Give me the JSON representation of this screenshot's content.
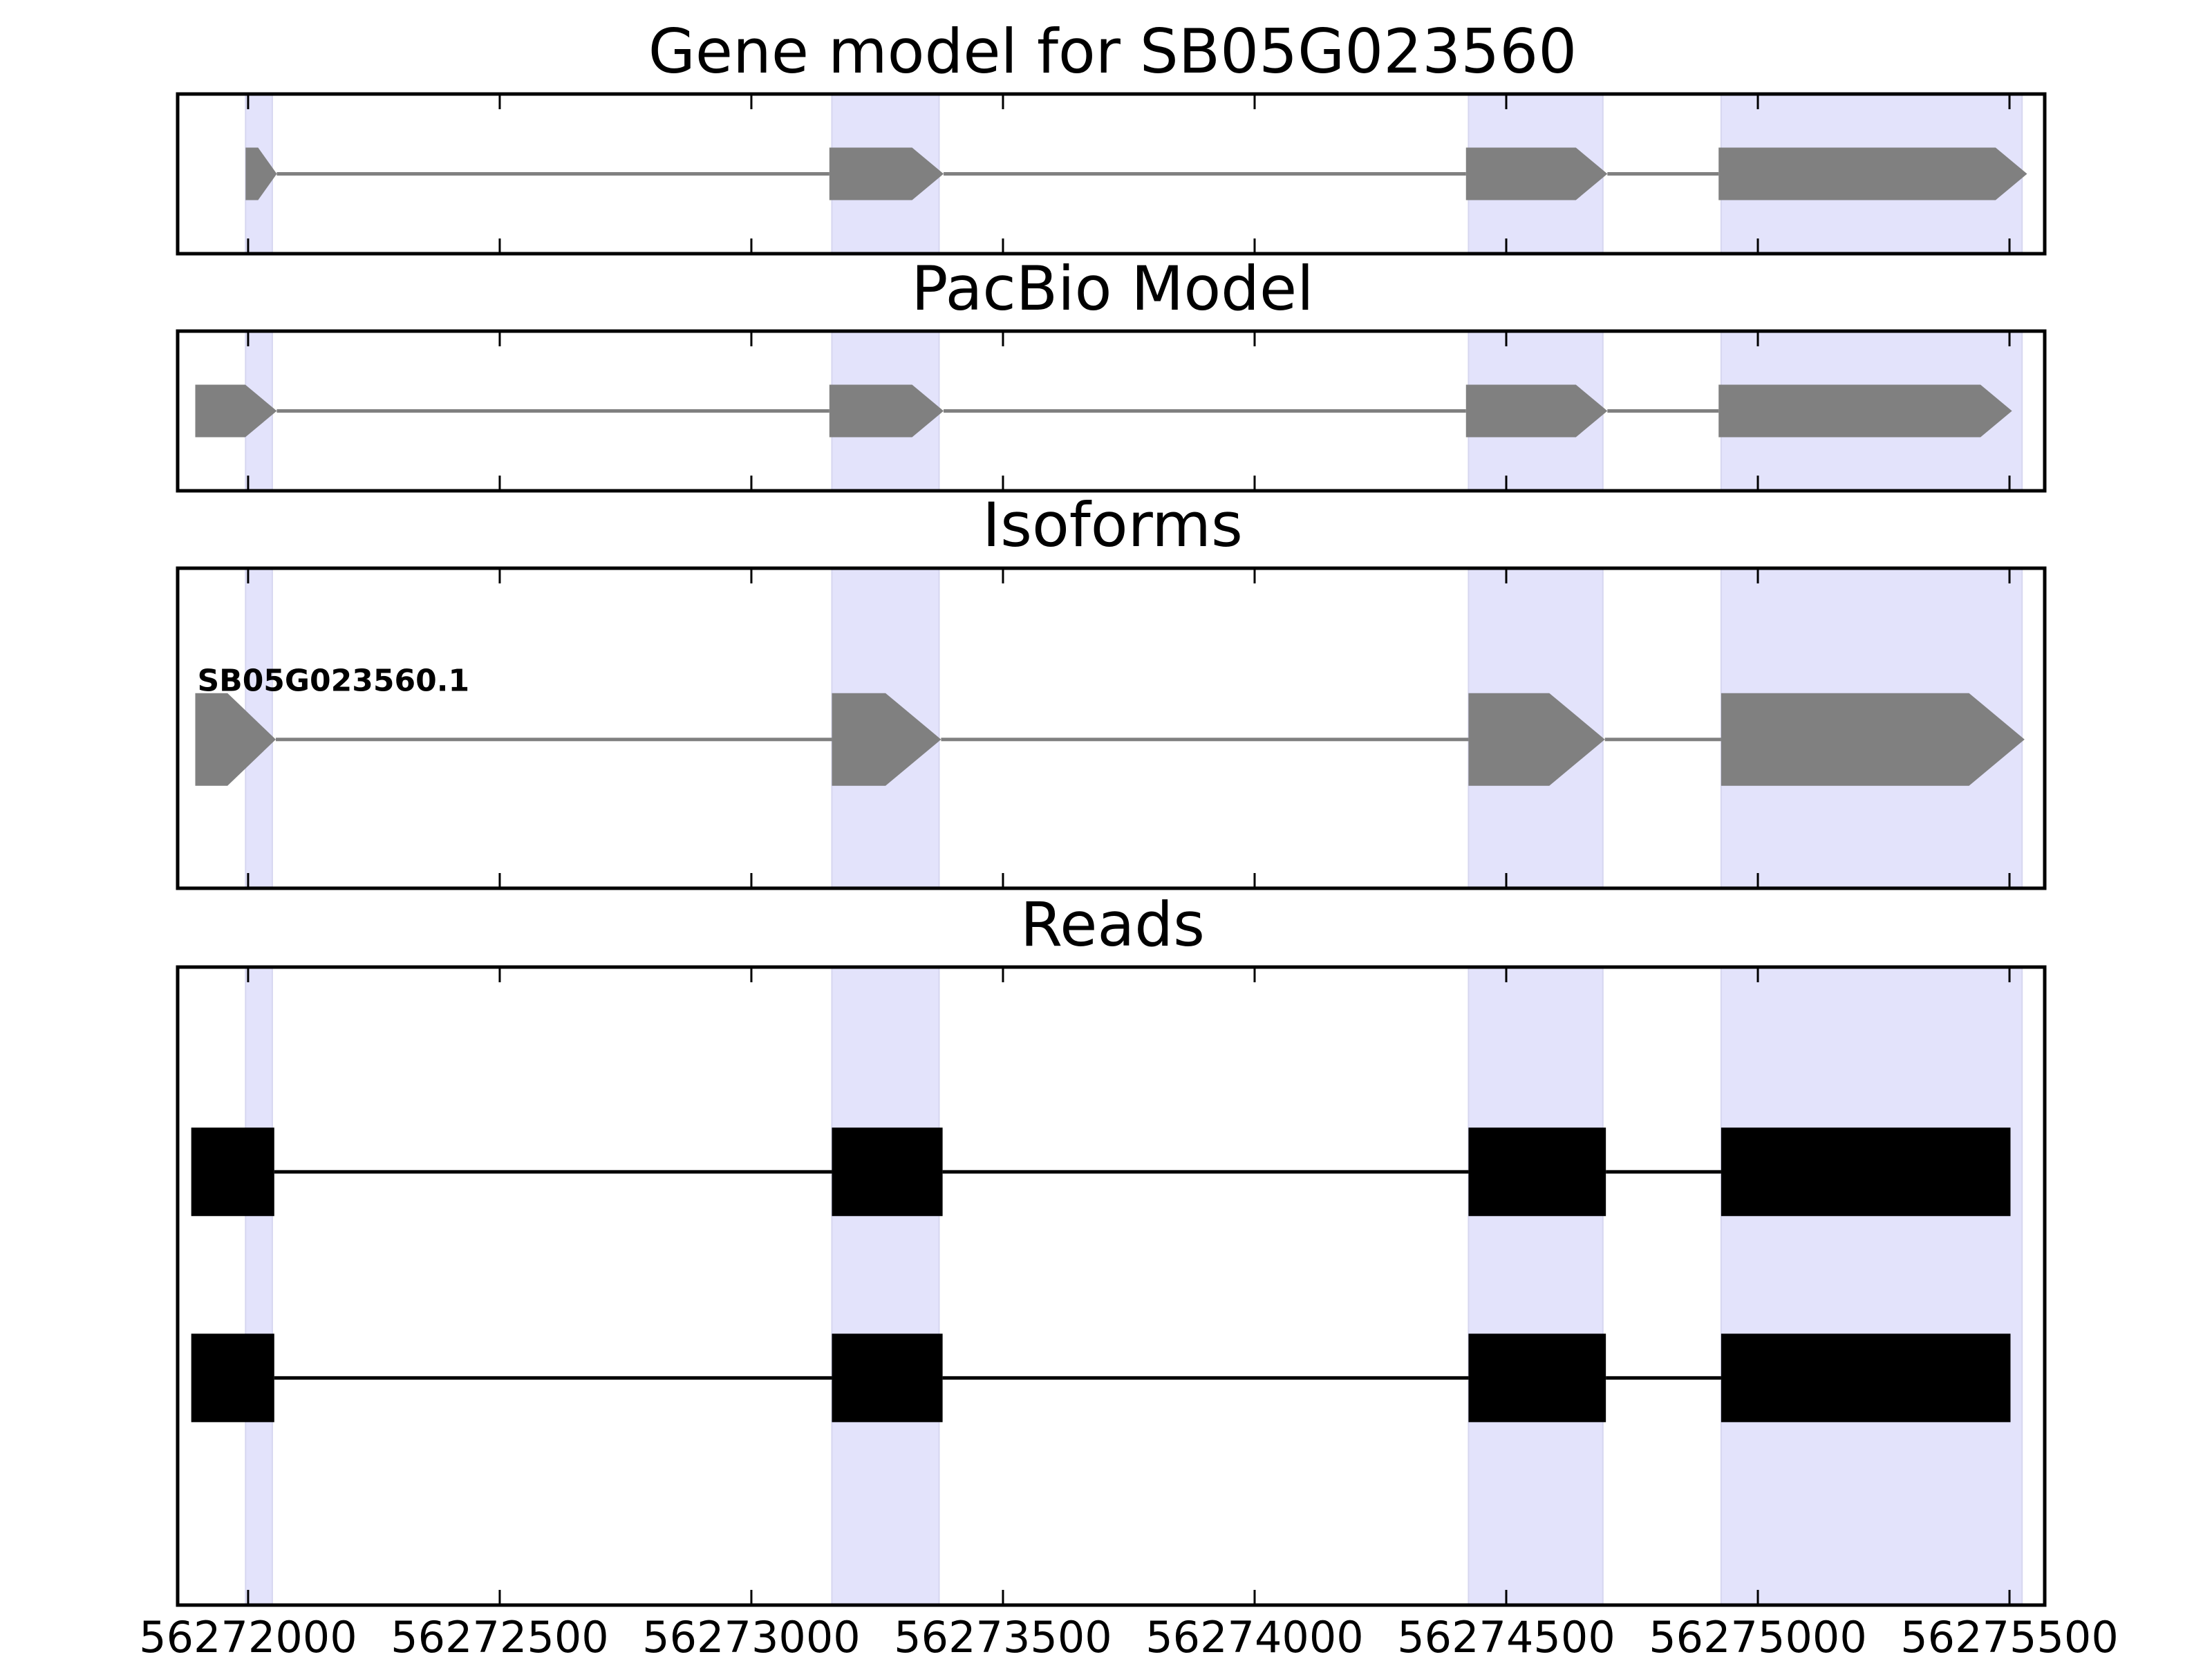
{
  "chart_data": {
    "type": "gene-structure",
    "xlim": [
      56271860,
      56275570
    ],
    "xticks": [
      56272000,
      56272500,
      56273000,
      56273500,
      56274000,
      56274500,
      56275000,
      56275500
    ],
    "xtick_labels": [
      "56272000",
      "56272500",
      "56273000",
      "56273500",
      "56274000",
      "56274500",
      "56275000",
      "56275500"
    ],
    "highlight_regions": [
      [
        56271995,
        56272048
      ],
      [
        56273160,
        56273373
      ],
      [
        56274425,
        56274692
      ],
      [
        56274927,
        56275525
      ]
    ],
    "colors": {
      "exon": "#808080",
      "intron": "#808080",
      "read": "#000000",
      "highlight": "#e3e3fb"
    },
    "panels": [
      {
        "title": "Gene model for SB05G023560",
        "strand": "+",
        "exons": [
          [
            56271995,
            56272057
          ],
          [
            56273155,
            56273382
          ],
          [
            56274420,
            56274701
          ],
          [
            56274922,
            56275535
          ]
        ]
      },
      {
        "title": "PacBio Model",
        "strand": "+",
        "exons": [
          [
            56271895,
            56272057
          ],
          [
            56273155,
            56273382
          ],
          [
            56274420,
            56274701
          ],
          [
            56274922,
            56275505
          ]
        ]
      },
      {
        "title": "Isoforms",
        "strand": "+",
        "isoforms": [
          {
            "name": "SB05G023560.1",
            "exons": [
              [
                56271895,
                56272055
              ],
              [
                56273160,
                56273377
              ],
              [
                56274425,
                56274696
              ],
              [
                56274927,
                56275530
              ]
            ]
          }
        ]
      },
      {
        "title": "Reads",
        "reads": [
          {
            "exons": [
              [
                56271887,
                56272052
              ],
              [
                56273160,
                56273380
              ],
              [
                56274425,
                56274698
              ],
              [
                56274927,
                56275502
              ]
            ]
          },
          {
            "exons": [
              [
                56271887,
                56272052
              ],
              [
                56273160,
                56273380
              ],
              [
                56274425,
                56274698
              ],
              [
                56274927,
                56275502
              ]
            ]
          }
        ]
      }
    ]
  }
}
